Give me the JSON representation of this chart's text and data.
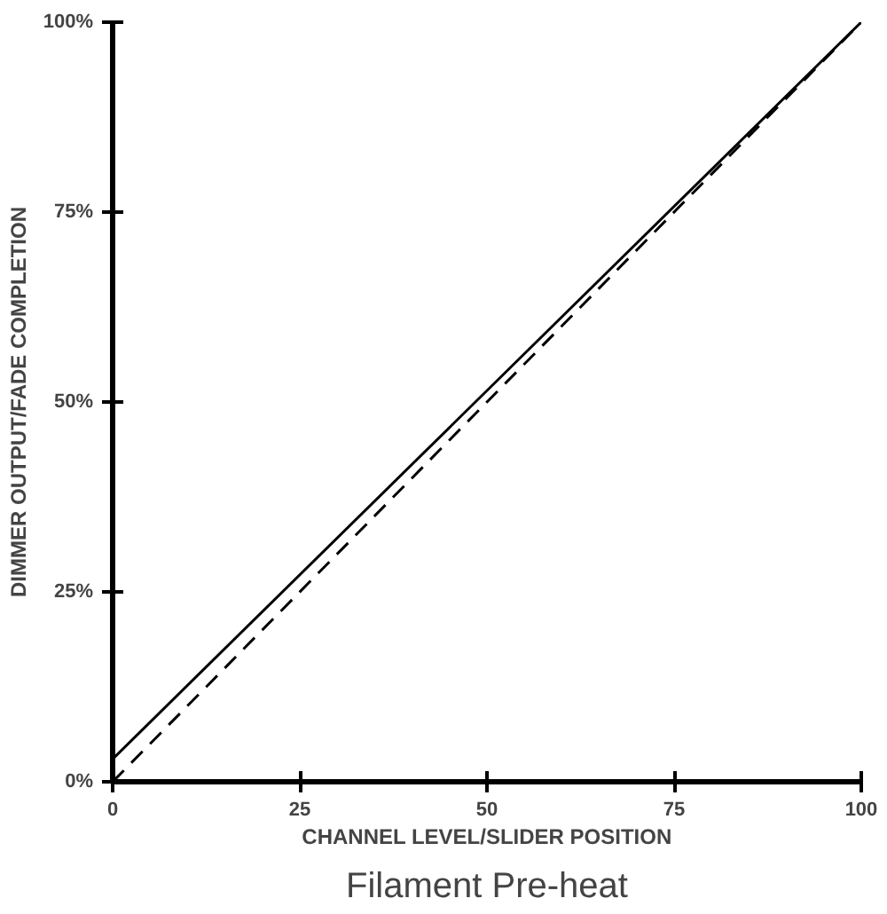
{
  "chart_data": {
    "type": "line",
    "title": "Filament Pre-heat",
    "xlabel": "CHANNEL LEVEL/SLIDER POSITION",
    "ylabel": "DIMMER OUTPUT/FADE COMPLETION",
    "x": [
      0,
      100
    ],
    "series": [
      {
        "values": [
          3,
          100
        ],
        "color": "#000000",
        "line_style": "solid"
      },
      {
        "values": [
          0,
          100
        ],
        "color": "#000000",
        "line_style": "dashed"
      }
    ],
    "xlim": [
      0,
      100
    ],
    "ylim": [
      0,
      100
    ],
    "xticks": [
      0,
      25,
      50,
      75,
      100
    ],
    "yticks": [
      {
        "value": 0,
        "label": "0%"
      },
      {
        "value": 25,
        "label": "25%"
      },
      {
        "value": 50,
        "label": "50%"
      },
      {
        "value": 75,
        "label": "75%"
      },
      {
        "value": 100,
        "label": "100%"
      }
    ],
    "grid": false
  }
}
